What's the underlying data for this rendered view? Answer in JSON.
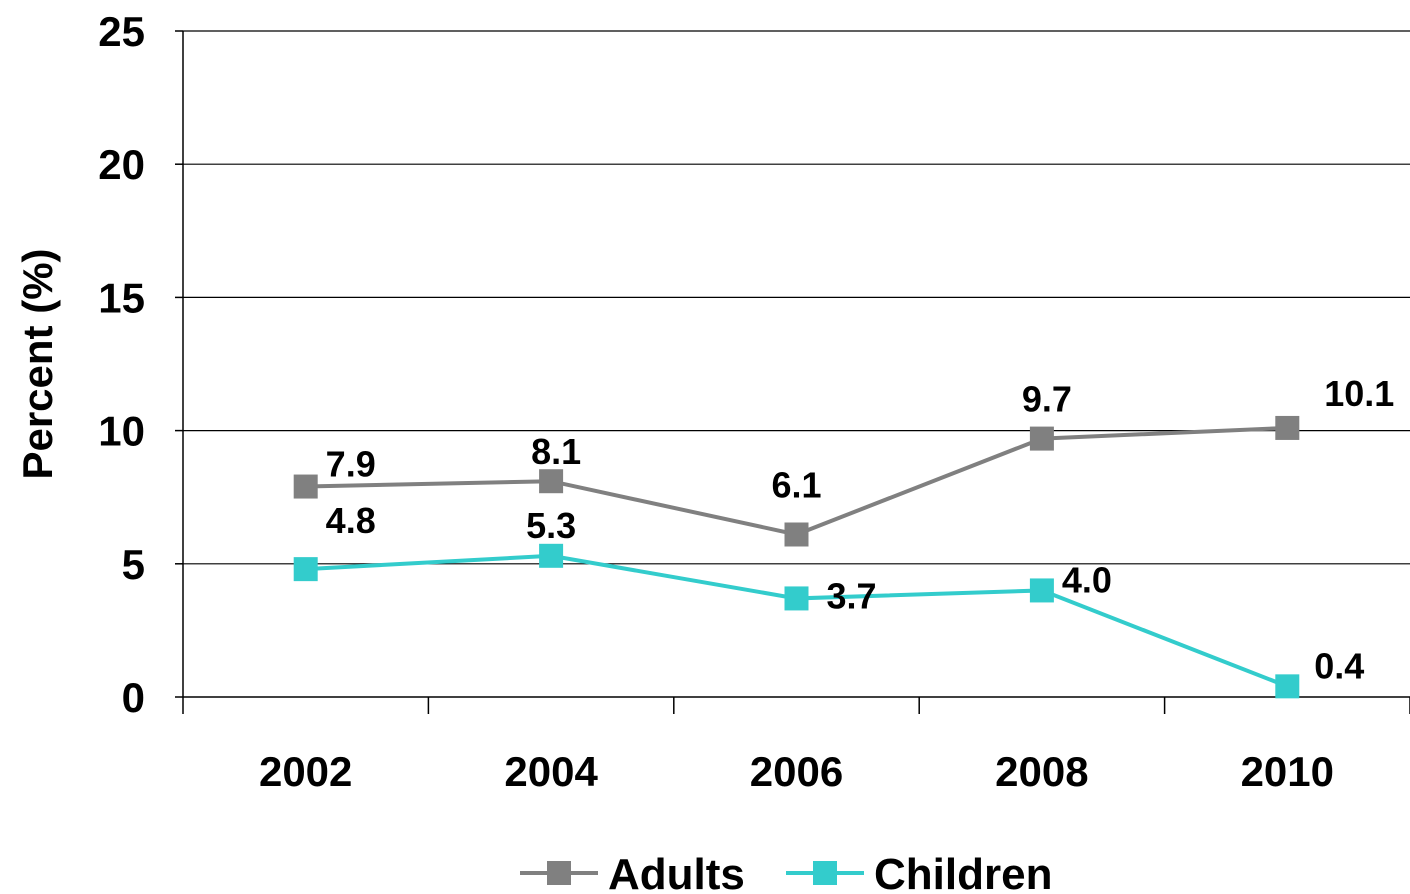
{
  "chart_data": {
    "type": "line",
    "title": "",
    "xlabel": "",
    "ylabel": "Percent (%)",
    "categories": [
      "2002",
      "2004",
      "2006",
      "2008",
      "2010"
    ],
    "ylim": [
      0,
      25
    ],
    "yticks": [
      "0",
      "5",
      "10",
      "15",
      "20",
      "25"
    ],
    "grid": true,
    "legend_position": "bottom",
    "series": [
      {
        "name": "Adults",
        "color": "#808080",
        "values": [
          7.9,
          8.1,
          6.1,
          9.7,
          10.1
        ],
        "labels": [
          "7.9",
          "8.1",
          "6.1",
          "9.7",
          "10.1"
        ]
      },
      {
        "name": "Children",
        "color": "#33CCCC",
        "values": [
          4.8,
          5.3,
          3.7,
          4.0,
          0.4
        ],
        "labels": [
          "4.8",
          "5.3",
          "3.7",
          "4.0",
          "0.4"
        ]
      }
    ]
  }
}
